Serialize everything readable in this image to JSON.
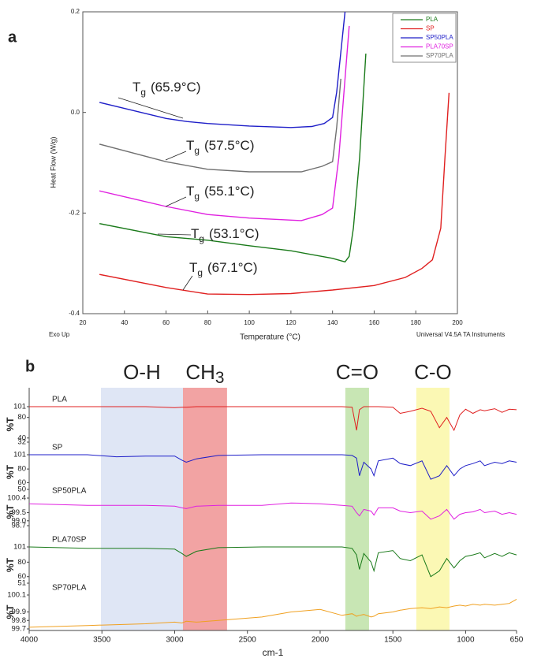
{
  "chart_data": [
    {
      "type": "line",
      "panel_label": "a",
      "xlabel": "Temperature (°C)",
      "ylabel": "Heat Flow (W/g)",
      "notes": [
        "Exo Up",
        "Universal V4.5A TA Instruments"
      ],
      "xlim": [
        20,
        200
      ],
      "xticks": [
        20,
        40,
        60,
        80,
        100,
        120,
        140,
        160,
        180,
        200
      ],
      "ylim": [
        -0.4,
        0.2
      ],
      "yticks": [
        0.2,
        {
          "value": 0,
          "label": "0.0"
        },
        -0.2,
        -0.4
      ],
      "legend": "top-right",
      "series": [
        {
          "name": "PLA",
          "color": "#1a7a1a",
          "x": [
            28,
            60,
            80,
            100,
            120,
            140,
            146,
            148,
            150,
            153,
            156
          ],
          "values": [
            -0.221,
            -0.247,
            -0.254,
            -0.265,
            -0.275,
            -0.29,
            -0.297,
            -0.286,
            -0.23,
            -0.09,
            0.117
          ]
        },
        {
          "name": "SP",
          "color": "#e02020",
          "x": [
            28,
            60,
            80,
            100,
            120,
            140,
            160,
            175,
            183,
            188,
            192,
            194,
            196
          ],
          "values": [
            -0.322,
            -0.348,
            -0.361,
            -0.362,
            -0.36,
            -0.353,
            -0.344,
            -0.328,
            -0.31,
            -0.293,
            -0.23,
            -0.09,
            0.039
          ]
        },
        {
          "name": "SP50PLA",
          "color": "#1e1ec8",
          "x": [
            28,
            40,
            50,
            60,
            70,
            80,
            100,
            120,
            130,
            136,
            140,
            142,
            144,
            146
          ],
          "values": [
            0.02,
            0.008,
            -0.002,
            -0.012,
            -0.018,
            -0.022,
            -0.027,
            -0.03,
            -0.028,
            -0.022,
            -0.01,
            0.04,
            0.12,
            0.2
          ]
        },
        {
          "name": "PLA70SP",
          "color": "#e020e0",
          "x": [
            28,
            60,
            80,
            100,
            125,
            135,
            140,
            143,
            146,
            148
          ],
          "values": [
            -0.156,
            -0.187,
            -0.203,
            -0.21,
            -0.215,
            -0.203,
            -0.19,
            -0.09,
            0.067,
            0.172
          ]
        },
        {
          "name": "SP70PLA",
          "color": "#707070",
          "x": [
            28,
            60,
            80,
            100,
            125,
            135,
            140,
            142,
            144
          ],
          "values": [
            -0.063,
            -0.098,
            -0.113,
            -0.118,
            -0.118,
            -0.107,
            -0.098,
            -0.03,
            0.067
          ]
        }
      ],
      "annotations": [
        {
          "label": "T",
          "subscript": "g",
          "text": "(65.9°C)"
        },
        {
          "label": "T",
          "subscript": "g",
          "text": "(57.5°C)"
        },
        {
          "label": "T",
          "subscript": "g",
          "text": "(55.1°C)"
        },
        {
          "label": "T",
          "subscript": "g",
          "text": "(53.1°C)"
        },
        {
          "label": "T",
          "subscript": "g",
          "text": "(67.1°C)"
        }
      ]
    },
    {
      "type": "line",
      "panel_label": "b",
      "xlabel": "cm-1",
      "ylabel": "%T",
      "xlim": [
        4000,
        650
      ],
      "xticks": [
        4000,
        3500,
        3000,
        2500,
        2000,
        1500,
        1000,
        650
      ],
      "bands": [
        {
          "label": "O-H",
          "range": [
            3507,
            2943
          ],
          "color": "#dfe6f5"
        },
        {
          "label": "CH",
          "subscript": "3",
          "range": [
            2943,
            2640
          ],
          "color": "#f2a3a3"
        },
        {
          "label": "C=O",
          "range": [
            1827,
            1664
          ],
          "color": "#c8e6b4"
        },
        {
          "label": "C-O",
          "range": [
            1339,
            1111
          ],
          "color": "#fbf8b4"
        }
      ],
      "x": [
        4000,
        3600,
        3400,
        3200,
        3000,
        2950,
        2920,
        2850,
        2700,
        2400,
        2200,
        2000,
        1850,
        1780,
        1750,
        1730,
        1700,
        1650,
        1630,
        1600,
        1500,
        1450,
        1380,
        1300,
        1240,
        1180,
        1130,
        1080,
        1040,
        1000,
        950,
        900,
        870,
        800,
        750,
        700,
        650
      ],
      "series": [
        {
          "name": "PLA",
          "color": "#e02020",
          "ylim": [
            32,
            101
          ],
          "yticks": [
            101,
            80,
            40,
            32
          ],
          "values": [
            101,
            101,
            101,
            101,
            99,
            100,
            100,
            101,
            101,
            101,
            101,
            101,
            101,
            100,
            55,
            95,
            101,
            101,
            101,
            101,
            100,
            88,
            92,
            98,
            92,
            60,
            80,
            55,
            85,
            96,
            88,
            95,
            93,
            97,
            90,
            96,
            95
          ]
        },
        {
          "name": "SP",
          "color": "#1e1ec8",
          "ylim": [
            50,
            101
          ],
          "yticks": [
            101,
            80,
            60,
            50
          ],
          "values": [
            101,
            101,
            98,
            99,
            99,
            93,
            90,
            95,
            100,
            101,
            101,
            101,
            101,
            100,
            96,
            70,
            90,
            80,
            70,
            92,
            96,
            88,
            85,
            92,
            65,
            70,
            85,
            70,
            80,
            85,
            88,
            92,
            85,
            90,
            88,
            92,
            90
          ]
        },
        {
          "name": "SP50PLA",
          "color": "#e020e0",
          "ylim": [
            98.7,
            100.4
          ],
          "yticks": [
            100.4,
            99.5,
            {
              "value": 99,
              "label": "99.0"
            },
            98.7
          ],
          "values": [
            100.05,
            99.95,
            99.95,
            99.95,
            99.9,
            99.8,
            99.75,
            99.9,
            99.95,
            99.95,
            100.1,
            100.05,
            99.95,
            99.9,
            99.5,
            99.3,
            99.7,
            99.6,
            99.35,
            99.8,
            99.8,
            99.6,
            99.5,
            99.6,
            99.1,
            99.3,
            99.7,
            99.1,
            99.4,
            99.5,
            99.55,
            99.7,
            99.5,
            99.6,
            99.4,
            99.5,
            99.4
          ]
        },
        {
          "name": "PLA70SP",
          "color": "#1a7a1a",
          "ylim": [
            51,
            101
          ],
          "yticks": [
            101,
            80,
            60,
            51
          ],
          "values": [
            101,
            99,
            99,
            99,
            98,
            92,
            88,
            95,
            100,
            101,
            101,
            101,
            101,
            99,
            90,
            70,
            92,
            80,
            68,
            93,
            96,
            85,
            82,
            90,
            60,
            68,
            85,
            72,
            82,
            88,
            90,
            93,
            86,
            92,
            88,
            93,
            90
          ]
        },
        {
          "name": "SP70PLA",
          "color": "#f0a020",
          "ylim": [
            99.7,
            100.1
          ],
          "yticks": [
            100.1,
            99.9,
            99.8,
            99.7
          ],
          "values": [
            99.72,
            99.74,
            99.75,
            99.76,
            99.78,
            99.77,
            99.79,
            99.78,
            99.8,
            99.84,
            99.9,
            99.93,
            99.86,
            99.88,
            99.85,
            99.86,
            99.87,
            99.84,
            99.85,
            99.88,
            99.9,
            99.92,
            99.94,
            99.95,
            99.94,
            99.96,
            99.95,
            99.97,
            99.98,
            99.97,
            99.99,
            99.98,
            99.99,
            99.98,
            99.99,
            100.0,
            100.05
          ]
        }
      ]
    }
  ]
}
